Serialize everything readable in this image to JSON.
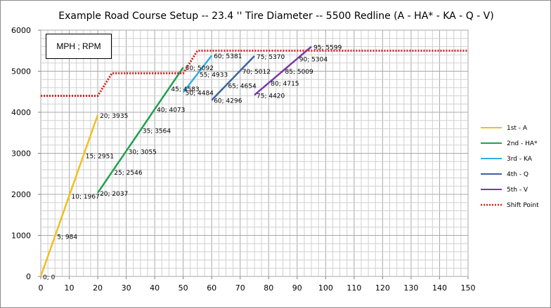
{
  "chart_data": {
    "type": "line",
    "title": "Example Road Course Setup -- 23.4 '' Tire Diameter -- 5500 Redline   (A - HA* - KA - Q - V)",
    "units_label": "MPH ; RPM",
    "xlim": [
      0,
      150
    ],
    "ylim": [
      0,
      6000
    ],
    "x_ticks": [
      0,
      10,
      20,
      30,
      40,
      50,
      60,
      70,
      80,
      90,
      100,
      110,
      120,
      130,
      140,
      150
    ],
    "y_ticks": [
      0,
      1000,
      2000,
      3000,
      4000,
      5000,
      6000
    ],
    "grid": true,
    "legend_position": "right",
    "series": [
      {
        "name": "1st - A",
        "color": "#f0c020",
        "style": "solid",
        "points": [
          [
            0,
            0
          ],
          [
            5,
            984
          ],
          [
            10,
            1967
          ],
          [
            15,
            2951
          ],
          [
            20,
            3935
          ]
        ]
      },
      {
        "name": "2nd - HA*",
        "color": "#20a050",
        "style": "solid",
        "points": [
          [
            20,
            2037
          ],
          [
            25,
            2546
          ],
          [
            30,
            3055
          ],
          [
            35,
            3564
          ],
          [
            40,
            4073
          ],
          [
            45,
            4583
          ],
          [
            50,
            5092
          ]
        ]
      },
      {
        "name": "3rd - KA",
        "color": "#30b0e0",
        "style": "solid",
        "points": [
          [
            50,
            4484
          ],
          [
            55,
            4933
          ],
          [
            60,
            5381
          ]
        ]
      },
      {
        "name": "4th - Q",
        "color": "#3c64a0",
        "style": "solid",
        "points": [
          [
            60,
            4296
          ],
          [
            65,
            4654
          ],
          [
            70,
            5012
          ],
          [
            75,
            5370
          ]
        ]
      },
      {
        "name": "5th - V",
        "color": "#7a3aa8",
        "style": "solid",
        "points": [
          [
            75,
            4420
          ],
          [
            80,
            4715
          ],
          [
            85,
            5009
          ],
          [
            90,
            5304
          ],
          [
            95,
            5599
          ]
        ]
      },
      {
        "name": "Shift Point",
        "color": "#d02020",
        "style": "dotted",
        "points": [
          [
            0,
            4400
          ],
          [
            20,
            4400
          ],
          [
            25,
            4950
          ],
          [
            50,
            4950
          ],
          [
            55,
            5500
          ],
          [
            150,
            5500
          ]
        ]
      }
    ],
    "data_labels": [
      {
        "text": "0; 0",
        "x": 0,
        "y": 0
      },
      {
        "text": "5; 984",
        "x": 5,
        "y": 984
      },
      {
        "text": "10; 1967",
        "x": 10,
        "y": 1967
      },
      {
        "text": "15; 2951",
        "x": 15,
        "y": 2951
      },
      {
        "text": "20; 3935",
        "x": 20,
        "y": 3935
      },
      {
        "text": "20; 2037",
        "x": 20,
        "y": 2037
      },
      {
        "text": "25; 2546",
        "x": 25,
        "y": 2546
      },
      {
        "text": "30; 3055",
        "x": 30,
        "y": 3055
      },
      {
        "text": "35; 3564",
        "x": 35,
        "y": 3564
      },
      {
        "text": "40; 4073",
        "x": 40,
        "y": 4073
      },
      {
        "text": "45; 4583",
        "x": 45,
        "y": 4583
      },
      {
        "text": "50; 5092",
        "x": 50,
        "y": 5092
      },
      {
        "text": "50; 4484",
        "x": 50,
        "y": 4484
      },
      {
        "text": "55; 4933",
        "x": 55,
        "y": 4933
      },
      {
        "text": "60; 5381",
        "x": 60,
        "y": 5381
      },
      {
        "text": "60; 4296",
        "x": 60,
        "y": 4296
      },
      {
        "text": "65; 4654",
        "x": 65,
        "y": 4654
      },
      {
        "text": "70; 5012",
        "x": 70,
        "y": 5012
      },
      {
        "text": "75; 5370",
        "x": 75,
        "y": 5370
      },
      {
        "text": "75; 4420",
        "x": 75,
        "y": 4420
      },
      {
        "text": "80; 4715",
        "x": 80,
        "y": 4715
      },
      {
        "text": "85; 5009",
        "x": 85,
        "y": 5009
      },
      {
        "text": "90; 5304",
        "x": 90,
        "y": 5304
      },
      {
        "text": "95; 5599",
        "x": 95,
        "y": 5599
      }
    ]
  }
}
